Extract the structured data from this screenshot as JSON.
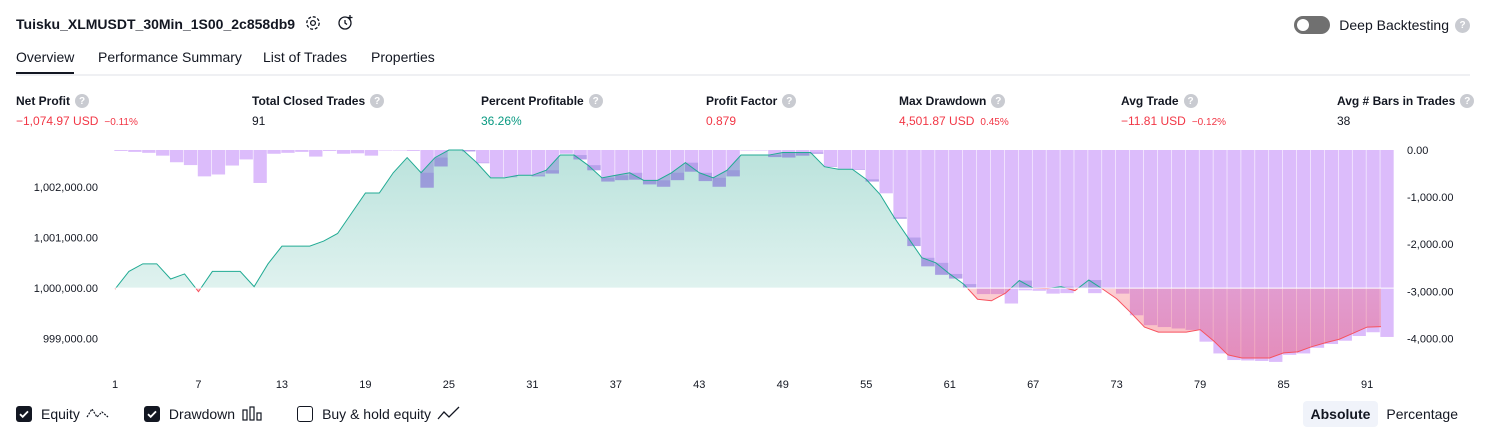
{
  "header": {
    "title": "Tuisku_XLMUSDT_30Min_1S00_2c858db9",
    "icons": [
      "gear-icon",
      "alert-add-icon"
    ],
    "deep_backtesting": {
      "label": "Deep Backtesting",
      "enabled": false
    }
  },
  "tabs": [
    {
      "label": "Overview",
      "active": true
    },
    {
      "label": "Performance Summary",
      "active": false
    },
    {
      "label": "List of Trades",
      "active": false
    },
    {
      "label": "Properties",
      "active": false
    }
  ],
  "metrics": [
    {
      "label": "Net Profit",
      "value": "−1,074.97 USD",
      "sub": "−0.11%",
      "tone": "red"
    },
    {
      "label": "Total Closed Trades",
      "value": "91",
      "sub": "",
      "tone": "dark"
    },
    {
      "label": "Percent Profitable",
      "value": "36.26%",
      "sub": "",
      "tone": "green"
    },
    {
      "label": "Profit Factor",
      "value": "0.879",
      "sub": "",
      "tone": "red"
    },
    {
      "label": "Max Drawdown",
      "value": "4,501.87 USD",
      "sub": "0.45%",
      "tone": "red"
    },
    {
      "label": "Avg Trade",
      "value": "−11.81 USD",
      "sub": "−0.12%",
      "tone": "red"
    },
    {
      "label": "Avg # Bars in Trades",
      "value": "38",
      "sub": "",
      "tone": "dark"
    }
  ],
  "chart_data": {
    "type": "area",
    "x": [
      1,
      2,
      3,
      4,
      5,
      6,
      7,
      8,
      9,
      10,
      11,
      12,
      13,
      14,
      15,
      16,
      17,
      18,
      19,
      20,
      21,
      22,
      23,
      24,
      25,
      26,
      27,
      28,
      29,
      30,
      31,
      32,
      33,
      34,
      35,
      36,
      37,
      38,
      39,
      40,
      41,
      42,
      43,
      44,
      45,
      46,
      47,
      48,
      49,
      50,
      51,
      52,
      53,
      54,
      55,
      56,
      57,
      58,
      59,
      60,
      61,
      62,
      63,
      64,
      65,
      66,
      67,
      68,
      69,
      70,
      71,
      72,
      73,
      74,
      75,
      76,
      77,
      78,
      79,
      80,
      81,
      82,
      83,
      84,
      85,
      86,
      87,
      88,
      89,
      90,
      91,
      92
    ],
    "x_ticks": [
      "1",
      "7",
      "13",
      "19",
      "25",
      "31",
      "37",
      "43",
      "49",
      "55",
      "61",
      "67",
      "73",
      "79",
      "85",
      "91"
    ],
    "series": [
      {
        "name": "Equity",
        "axis": "left",
        "values": [
          999980,
          1000330,
          1000480,
          1000480,
          1000180,
          1000280,
          999930,
          1000330,
          1000330,
          1000330,
          1000030,
          1000480,
          1000830,
          1000830,
          1000830,
          1000930,
          1001080,
          1001480,
          1001880,
          1001880,
          1002280,
          1002580,
          1002280,
          1002580,
          1002730,
          1002730,
          1002480,
          1002180,
          1002180,
          1002230,
          1002230,
          1002330,
          1002630,
          1002630,
          1002430,
          1002180,
          1002230,
          1002280,
          1002130,
          1002130,
          1002280,
          1002480,
          1002280,
          1002180,
          1002330,
          1002630,
          1002630,
          1002630,
          1002680,
          1002680,
          1002680,
          1002400,
          1002350,
          1002350,
          1002150,
          1001850,
          1001400,
          1001000,
          1000600,
          1000500,
          1000280,
          1000080,
          999780,
          999750,
          999900,
          1000150,
          1000000,
          999990,
          1000030,
          999950,
          1000160,
          999980,
          999790,
          999520,
          999230,
          999130,
          999130,
          999130,
          999180,
          998950,
          998680,
          998620,
          998620,
          998620,
          998720,
          998740,
          998840,
          998920,
          998990,
          999110,
          999230,
          999240
        ]
      },
      {
        "name": "Drawdown",
        "axis": "right",
        "values": [
          -20,
          -40,
          -60,
          -120,
          -260,
          -320,
          -560,
          -520,
          -330,
          -200,
          -700,
          -80,
          -60,
          -40,
          -140,
          -20,
          -80,
          -70,
          -120,
          -10,
          -10,
          -20,
          -800,
          -350,
          -10,
          -30,
          -280,
          -580,
          -580,
          -530,
          -560,
          -500,
          -80,
          -200,
          -430,
          -670,
          -640,
          -630,
          -730,
          -780,
          -640,
          -460,
          -660,
          -780,
          -560,
          -10,
          -10,
          -150,
          -160,
          -120,
          -80,
          -360,
          -400,
          -420,
          -670,
          -920,
          -1460,
          -2040,
          -2470,
          -2650,
          -2730,
          -2920,
          -3060,
          -3060,
          -3260,
          -2980,
          -2990,
          -3050,
          -3040,
          -2940,
          -3040,
          -2950,
          -3050,
          -3510,
          -3720,
          -3760,
          -3790,
          -3820,
          -4070,
          -4320,
          -4460,
          -4470,
          -4480,
          -4500,
          -4350,
          -4320,
          -4200,
          -4120,
          -4050,
          -3950,
          -3870,
          -3970
        ]
      }
    ],
    "left_axis": {
      "ticks": [
        "1,002,000.00",
        "1,001,000.00",
        "1,000,000.00",
        "999,000.00"
      ],
      "tick_values": [
        1002000,
        1001000,
        1000000,
        999000
      ],
      "range": [
        998540,
        1002730
      ]
    },
    "right_axis": {
      "ticks": [
        "0.00",
        "-1,000.00",
        "-2,000.00",
        "-3,000.00",
        "-4,000.00"
      ],
      "tick_values": [
        0,
        -1000,
        -2000,
        -3000,
        -4000
      ],
      "range": [
        -4501.87,
        0
      ]
    },
    "baseline": 1000000,
    "colors": {
      "equity_line_up": "#22ab94",
      "equity_line_down": "#f7525f",
      "equity_fill_up": "#089981",
      "equity_fill_down": "#f23645",
      "drawdown": "#dcbcfb",
      "overlap_line": "#5b9cf6"
    }
  },
  "legend": {
    "items": [
      {
        "label": "Equity",
        "checked": true,
        "icon": "equity-line-icon"
      },
      {
        "label": "Drawdown",
        "checked": true,
        "icon": "drawdown-bars-icon"
      },
      {
        "label": "Buy & hold equity",
        "checked": false,
        "icon": "buy-hold-line-icon"
      }
    ],
    "modes": [
      {
        "label": "Absolute",
        "active": true
      },
      {
        "label": "Percentage",
        "active": false
      }
    ]
  }
}
